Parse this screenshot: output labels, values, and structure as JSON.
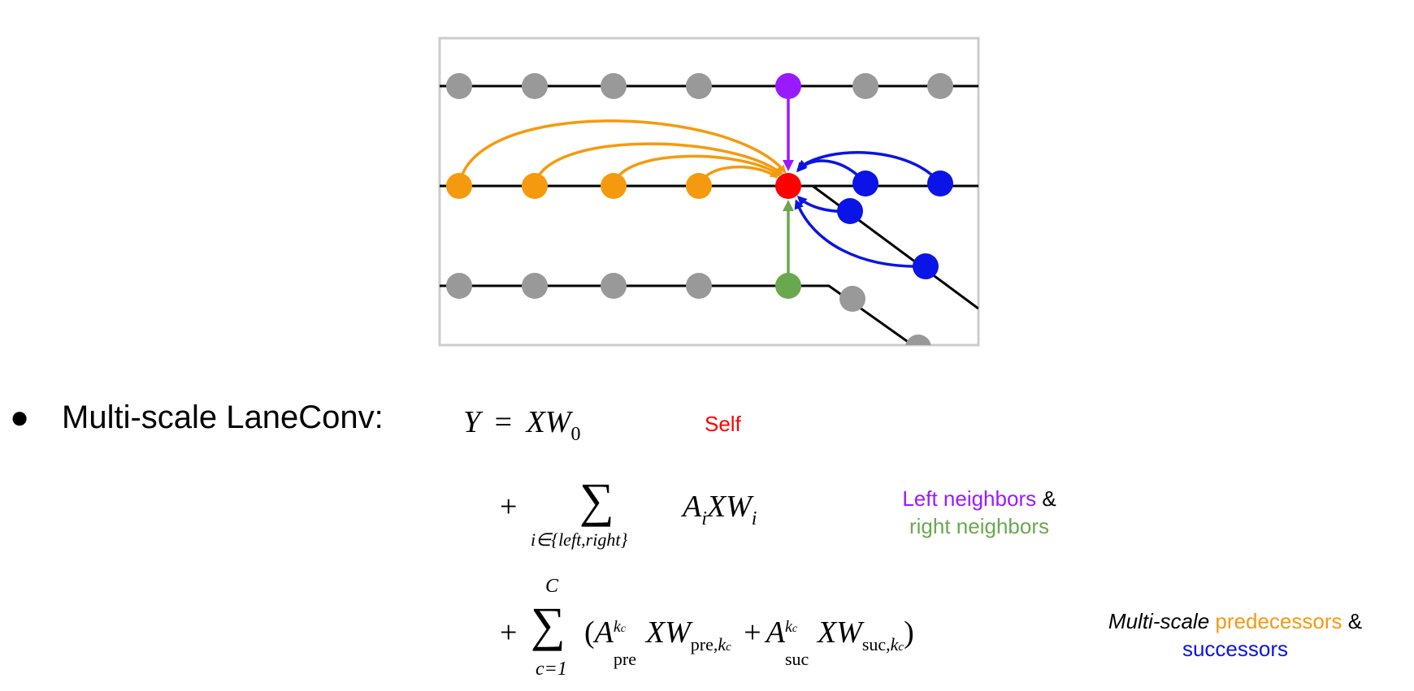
{
  "colors": {
    "gray_node": "#999999",
    "purple": "#9a1aff",
    "orange": "#f59a0e",
    "red": "#ff0000",
    "blue": "#0a14e6",
    "green": "#6aa84f",
    "frame": "#cccccc"
  },
  "bullet": {
    "symbol": "●",
    "label": "Multi-scale LaneConv:"
  },
  "equation": {
    "line1": {
      "lhs": "Y",
      "eq": "=",
      "rhs_var": "XW",
      "rhs_sub": "0"
    },
    "line2": {
      "plus": "+",
      "sum": "∑",
      "sum_under": "i∈{left,right}",
      "term_A": "A",
      "term_A_sub": "i",
      "term_XW": "XW",
      "term_W_sub": "i"
    },
    "line3": {
      "plus": "+",
      "sum": "∑",
      "sum_over": "C",
      "sum_under": "c=1",
      "lparen": "(",
      "A1": "A",
      "A1_sub": "pre",
      "A1_sup": "k",
      "A1_sup_sub": "c",
      "XW1": "XW",
      "XW1_sub": "pre,",
      "XW1_sub_k": "k",
      "XW1_sub_kc": "c",
      "plus_inner": "+",
      "A2": "A",
      "A2_sub": "suc",
      "A2_sup": "k",
      "A2_sup_sub": "c",
      "XW2": "XW",
      "XW2_sub": "suc,",
      "XW2_sub_k": "k",
      "XW2_sub_kc": "c",
      "rparen": ")"
    }
  },
  "annotations": {
    "self": "Self",
    "left_neighbors": "Left neighbors",
    "amp1": "&",
    "right_neighbors": "right neighbors",
    "multi_scale": "Multi-scale",
    "predecessors": "predecessors",
    "amp2": "&",
    "successors": "successors"
  }
}
